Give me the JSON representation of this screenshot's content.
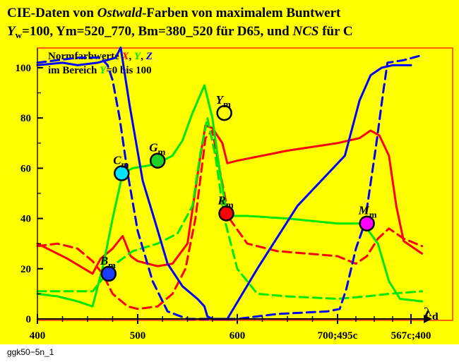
{
  "chart_data": {
    "type": "line",
    "title_line1": {
      "a": "CIE-Daten von ",
      "b": "Ostwald",
      "c": "-Farben von maximalem Buntwert"
    },
    "title_line2": {
      "a": "Y",
      "a_sub": "w",
      "b": "=100, Ym=520_770, Bm=380_520 für D65, und ",
      "c": "NCS",
      "d": " für C"
    },
    "legend": {
      "line1_prefix": "Normfarbwerte ",
      "x": "X",
      "sep1": ", ",
      "y": "Y",
      "sep2": ", ",
      "z": "Z",
      "line2_a": "im Bereich ",
      "line2_y": "Y",
      "line2_b": "=0 bis 100"
    },
    "xlabel": "λ",
    "xlabel_sub": "d",
    "x_ticks": [
      {
        "x": 400,
        "label": "400"
      },
      {
        "x": 500,
        "label": "500"
      },
      {
        "x": 600,
        "label": "600"
      },
      {
        "x": 700,
        "label": "700;495c"
      },
      {
        "x": 800,
        "label": "567c;400"
      }
    ],
    "y_ticks": [
      0,
      20,
      40,
      60,
      80,
      100
    ],
    "xlim": [
      400,
      810
    ],
    "ylim": [
      0,
      108
    ],
    "colors": {
      "X": "#ff0000",
      "Y": "#00e600",
      "Z": "#0000ff",
      "background": "#ffff00",
      "frame": "#ff0000"
    },
    "series": [
      {
        "name": "X",
        "style": "solid",
        "color": "#ff0000",
        "points": [
          [
            400,
            30
          ],
          [
            430,
            24
          ],
          [
            455,
            18
          ],
          [
            463,
            24
          ],
          [
            475,
            28
          ],
          [
            485,
            33
          ],
          [
            493,
            25
          ],
          [
            500,
            23
          ],
          [
            520,
            21
          ],
          [
            535,
            22
          ],
          [
            550,
            30
          ],
          [
            563,
            65
          ],
          [
            568,
            77
          ],
          [
            575,
            76
          ],
          [
            585,
            70
          ],
          [
            590,
            62
          ],
          [
            600,
            63
          ],
          [
            650,
            67
          ],
          [
            700,
            70
          ],
          [
            730,
            72
          ],
          [
            745,
            75
          ],
          [
            757,
            73
          ],
          [
            770,
            65
          ],
          [
            780,
            45
          ],
          [
            790,
            31
          ],
          [
            815,
            26
          ]
        ]
      },
      {
        "name": "X",
        "style": "dashed",
        "color": "#ff0000",
        "points": [
          [
            400,
            29
          ],
          [
            420,
            30
          ],
          [
            440,
            28
          ],
          [
            455,
            23
          ],
          [
            465,
            18
          ],
          [
            475,
            10
          ],
          [
            490,
            5
          ],
          [
            500,
            4
          ],
          [
            520,
            5
          ],
          [
            535,
            10
          ],
          [
            548,
            20
          ],
          [
            558,
            40
          ],
          [
            568,
            72
          ],
          [
            575,
            75
          ],
          [
            582,
            60
          ],
          [
            592,
            40
          ],
          [
            610,
            30
          ],
          [
            640,
            27
          ],
          [
            670,
            26
          ],
          [
            700,
            25
          ],
          [
            725,
            22
          ],
          [
            740,
            25
          ],
          [
            755,
            32
          ],
          [
            770,
            36
          ],
          [
            790,
            32
          ],
          [
            815,
            29
          ]
        ]
      },
      {
        "name": "Y",
        "style": "solid",
        "color": "#00e600",
        "points": [
          [
            400,
            10
          ],
          [
            420,
            9
          ],
          [
            440,
            7
          ],
          [
            455,
            5
          ],
          [
            466,
            22
          ],
          [
            475,
            40
          ],
          [
            485,
            58
          ],
          [
            495,
            60
          ],
          [
            510,
            61
          ],
          [
            520,
            62
          ],
          [
            535,
            65
          ],
          [
            545,
            71
          ],
          [
            555,
            82
          ],
          [
            567,
            93
          ],
          [
            575,
            80
          ],
          [
            582,
            60
          ],
          [
            590,
            41
          ],
          [
            610,
            41
          ],
          [
            650,
            40
          ],
          [
            700,
            38
          ],
          [
            735,
            38
          ],
          [
            755,
            30
          ],
          [
            770,
            15
          ],
          [
            785,
            8
          ],
          [
            815,
            7
          ]
        ]
      },
      {
        "name": "Y",
        "style": "dashed",
        "color": "#00e600",
        "points": [
          [
            400,
            11
          ],
          [
            425,
            11
          ],
          [
            455,
            11
          ],
          [
            467,
            17
          ],
          [
            478,
            22
          ],
          [
            495,
            27
          ],
          [
            520,
            30
          ],
          [
            540,
            34
          ],
          [
            555,
            45
          ],
          [
            563,
            66
          ],
          [
            570,
            80
          ],
          [
            578,
            65
          ],
          [
            587,
            40
          ],
          [
            600,
            20
          ],
          [
            620,
            10
          ],
          [
            650,
            9
          ],
          [
            700,
            8
          ],
          [
            740,
            9
          ],
          [
            770,
            10
          ],
          [
            815,
            11
          ]
        ]
      },
      {
        "name": "Z",
        "style": "solid",
        "color": "#0000ff",
        "points": [
          [
            400,
            101
          ],
          [
            425,
            102
          ],
          [
            440,
            101
          ],
          [
            460,
            102
          ],
          [
            478,
            104
          ],
          [
            483,
            108
          ],
          [
            492,
            85
          ],
          [
            505,
            55
          ],
          [
            518,
            38
          ],
          [
            530,
            22
          ],
          [
            545,
            13
          ],
          [
            560,
            8
          ],
          [
            567,
            5
          ],
          [
            570,
            1
          ],
          [
            575,
            0
          ],
          [
            590,
            0
          ],
          [
            620,
            20
          ],
          [
            660,
            45
          ],
          [
            710,
            65
          ],
          [
            730,
            87
          ],
          [
            745,
            97
          ],
          [
            760,
            100
          ],
          [
            775,
            101
          ],
          [
            800,
            101
          ]
        ]
      },
      {
        "name": "Z",
        "style": "dashed",
        "color": "#0000ff",
        "points": [
          [
            400,
            102
          ],
          [
            420,
            103
          ],
          [
            440,
            104
          ],
          [
            463,
            104
          ],
          [
            470,
            101
          ],
          [
            475,
            95
          ],
          [
            482,
            80
          ],
          [
            490,
            58
          ],
          [
            500,
            35
          ],
          [
            515,
            15
          ],
          [
            530,
            3
          ],
          [
            550,
            0
          ],
          [
            600,
            0
          ],
          [
            640,
            2
          ],
          [
            690,
            3
          ],
          [
            703,
            4
          ],
          [
            712,
            12
          ],
          [
            725,
            28
          ],
          [
            737,
            38
          ],
          [
            752,
            68
          ],
          [
            762,
            90
          ],
          [
            768,
            102
          ],
          [
            790,
            103
          ],
          [
            815,
            105
          ]
        ]
      }
    ],
    "markers": [
      {
        "id": "cm",
        "label": "C",
        "sub": "m",
        "x": 484,
        "y": 58,
        "fill": "#00e5ff",
        "stroke": "#000000"
      },
      {
        "id": "gm",
        "label": "G",
        "sub": "m",
        "x": 520,
        "y": 63,
        "fill": "#1fd126",
        "stroke": "#000000"
      },
      {
        "id": "ym",
        "label": "Y",
        "sub": "m",
        "x": 587,
        "y": 82,
        "fill": "#ffff00",
        "stroke": "#000000"
      },
      {
        "id": "rm",
        "label": "R",
        "sub": "m",
        "x": 589,
        "y": 42,
        "fill": "#ff0000",
        "stroke": "#000000"
      },
      {
        "id": "mm",
        "label": "M",
        "sub": "m",
        "x": 740,
        "y": 38,
        "fill": "#ff00ff",
        "stroke": "#000000"
      },
      {
        "id": "bm",
        "label": "B",
        "sub": "m",
        "x": 471,
        "y": 18,
        "fill": "#1a3cff",
        "stroke": "#000000"
      }
    ]
  },
  "footer": "ggk50−5n_1"
}
